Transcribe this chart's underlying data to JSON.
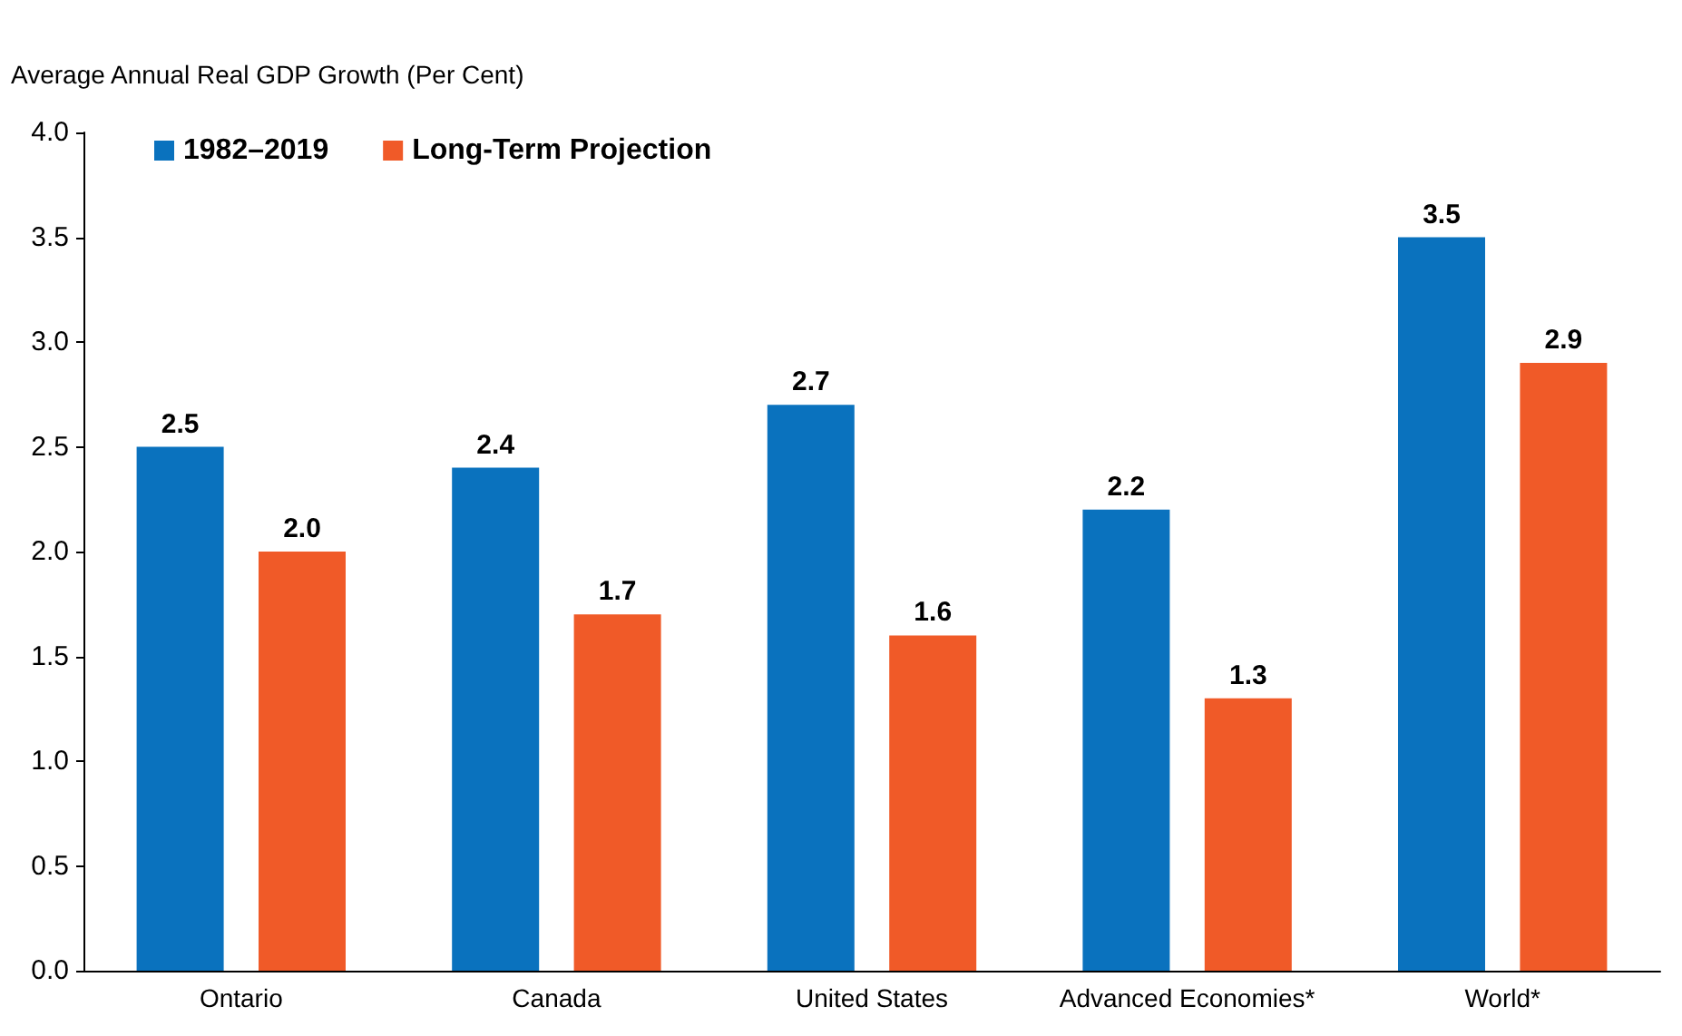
{
  "chart_data": {
    "type": "bar",
    "ylabel": "Average Annual Real GDP Growth (Per Cent)",
    "categories": [
      "Ontario",
      "Canada",
      "United States",
      "Advanced Economies*",
      "World*"
    ],
    "series": [
      {
        "name": "1982–2019",
        "color": "#0a72be",
        "values": [
          2.5,
          2.4,
          2.7,
          2.2,
          3.5
        ],
        "value_labels": [
          "2.5",
          "2.4",
          "2.7",
          "2.2",
          "3.5"
        ]
      },
      {
        "name": "Long-Term Projection",
        "color": "#f05a28",
        "values": [
          2.0,
          1.7,
          1.6,
          1.3,
          2.9
        ],
        "value_labels": [
          "2.0",
          "1.7",
          "1.6",
          "1.3",
          "2.9"
        ]
      }
    ],
    "ylim": [
      0,
      4
    ],
    "yticks": [
      {
        "value": 0,
        "label": "0.0"
      },
      {
        "value": 0.5,
        "label": "0.5"
      },
      {
        "value": 1,
        "label": "1.0"
      },
      {
        "value": 1.5,
        "label": "1.5"
      },
      {
        "value": 2,
        "label": "2.0"
      },
      {
        "value": 2.5,
        "label": "2.5"
      },
      {
        "value": 3,
        "label": "3.0"
      },
      {
        "value": 3.5,
        "label": "3.5"
      },
      {
        "value": 4,
        "label": "4.0"
      }
    ],
    "grid": false,
    "legend": "top left"
  }
}
